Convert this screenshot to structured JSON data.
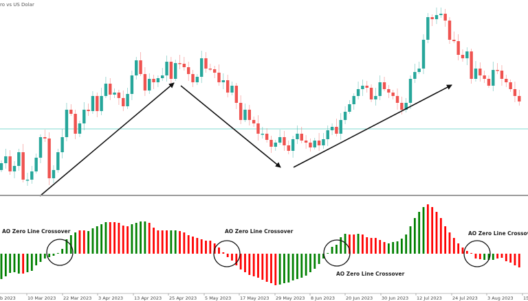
{
  "header": {
    "title": "ro vs US Dolar"
  },
  "colors": {
    "bull": "#26a69a",
    "bear": "#ef5350",
    "ao_up": "#008000",
    "ao_down": "#ff0000",
    "level_line": "#80d8d0",
    "separator": "#999999",
    "arrow": "#111111"
  },
  "chart_data": [
    {
      "type": "candlestick",
      "title": "",
      "note": "price scale not shown; values are relative levels",
      "closes": [
        62,
        72,
        50,
        58,
        78,
        38,
        38,
        50,
        70,
        100,
        98,
        40,
        52,
        78,
        100,
        140,
        134,
        105,
        120,
        140,
        138,
        160,
        138,
        160,
        178,
        162,
        165,
        157,
        145,
        163,
        190,
        212,
        192,
        168,
        185,
        180,
        186,
        190,
        210,
        185,
        208,
        207,
        202,
        192,
        180,
        188,
        215,
        200,
        199,
        194,
        180,
        183,
        165,
        175,
        150,
        125,
        140,
        125,
        120,
        105,
        105,
        96,
        86,
        92,
        100,
        88,
        80,
        97,
        105,
        95,
        92,
        85,
        95,
        88,
        97,
        110,
        115,
        105,
        125,
        137,
        148,
        160,
        170,
        175,
        172,
        155,
        160,
        180,
        170,
        165,
        160,
        150,
        140,
        150,
        185,
        195,
        200,
        242,
        275,
        272,
        278,
        280,
        270,
        242,
        240,
        220,
        215,
        225,
        185,
        200,
        190,
        185,
        175,
        198,
        197,
        185,
        180,
        170,
        160,
        152
      ],
      "horizontal_level": 112,
      "arrows": [
        "uptrend",
        "downtrend",
        "uptrend"
      ]
    },
    {
      "type": "bar",
      "title": "",
      "indicator": "Awesome Oscillator",
      "values": [
        -37,
        -33,
        -28,
        -27,
        -29,
        -29,
        -27,
        -25,
        -17,
        -12,
        -7,
        -5,
        -3,
        1,
        7,
        21,
        27,
        31,
        34,
        34,
        33,
        37,
        40,
        43,
        46,
        46,
        46,
        45,
        41,
        40,
        43,
        45,
        47,
        47,
        45,
        38,
        34,
        34,
        34,
        34,
        34,
        33,
        31,
        27,
        25,
        23,
        21,
        19,
        19,
        15,
        9,
        2,
        -5,
        -10,
        -17,
        -23,
        -27,
        -31,
        -33,
        -35,
        -38,
        -41,
        -43,
        -46,
        -45,
        -43,
        -42,
        -39,
        -37,
        -35,
        -32,
        -27,
        -22,
        -15,
        -7,
        1,
        10,
        13,
        24,
        29,
        28,
        28,
        29,
        28,
        24,
        23,
        23,
        20,
        17,
        15,
        17,
        18,
        22,
        28,
        40,
        52,
        61,
        68,
        72,
        68,
        61,
        52,
        40,
        31,
        23,
        15,
        9,
        4,
        1,
        -7,
        -8,
        -9,
        -9,
        -9,
        -7,
        -6,
        -11,
        -13,
        -17,
        -20
      ],
      "colors": "gggggrggggggggggggrrgggggrrrrrggggrrrrrggrrrrrrrrrrrrrrrrrrrrrrrggggggggggggggggrrgrrrrrrgggggggggrrrrrrrrrrrrrgggrrrrr",
      "zero_line_crossovers": 4
    }
  ],
  "annotations": [
    {
      "text": "AO Zero Line Crossover"
    },
    {
      "text": "AO Zero Line Crossover"
    },
    {
      "text": "AO Zero Line Crossover"
    },
    {
      "text": "AO Zero Line Crossover"
    }
  ],
  "xaxis": {
    "labels": [
      "b 2023",
      "10 Mar 2023",
      "22 Mar 2023",
      "3 Apr 2023",
      "13 Apr 2023",
      "25 Apr 2023",
      "5 May 2023",
      "17 May 2023",
      "29 May 2023",
      "8 Jun 2023",
      "20 Jun 2023",
      "30 Jun 2023",
      "12 Jul 2023",
      "24 Jul 2023",
      "3 Aug 2023",
      "15 A"
    ]
  }
}
